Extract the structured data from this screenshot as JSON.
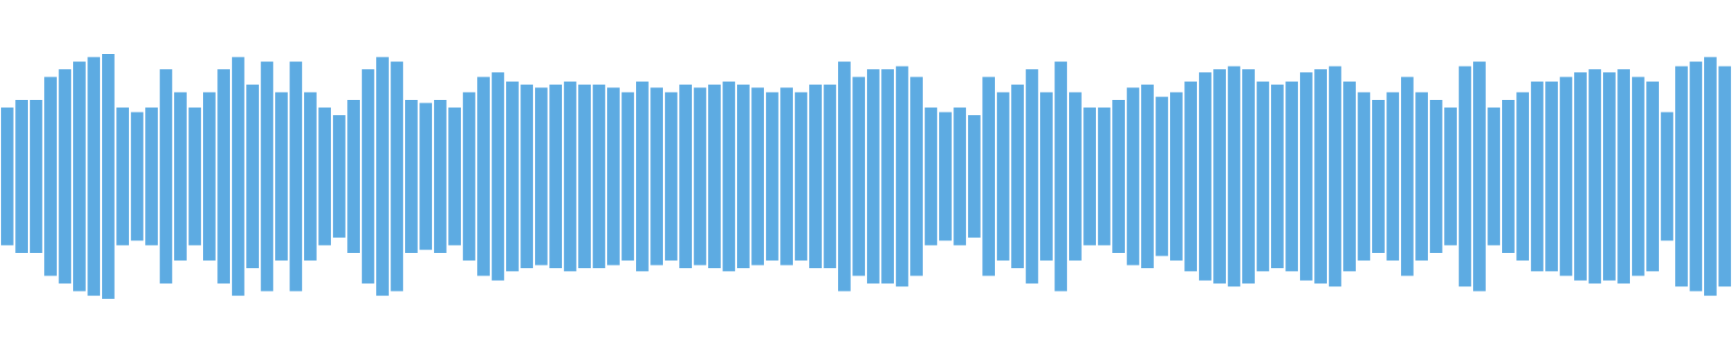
{
  "chart_data": {
    "type": "waveform",
    "color": "#5dabe2",
    "ylim": [
      -1,
      1
    ],
    "values": [
      0.45,
      0.5,
      0.5,
      0.65,
      0.7,
      0.75,
      0.78,
      0.8,
      0.45,
      0.42,
      0.45,
      0.7,
      0.55,
      0.45,
      0.55,
      0.7,
      0.78,
      0.6,
      0.75,
      0.55,
      0.75,
      0.55,
      0.45,
      0.4,
      0.5,
      0.7,
      0.78,
      0.75,
      0.5,
      0.48,
      0.5,
      0.45,
      0.55,
      0.65,
      0.68,
      0.62,
      0.6,
      0.58,
      0.6,
      0.62,
      0.6,
      0.6,
      0.58,
      0.55,
      0.62,
      0.58,
      0.55,
      0.6,
      0.58,
      0.6,
      0.62,
      0.6,
      0.58,
      0.55,
      0.58,
      0.55,
      0.6,
      0.6,
      0.75,
      0.65,
      0.7,
      0.7,
      0.72,
      0.65,
      0.45,
      0.42,
      0.45,
      0.4,
      0.65,
      0.55,
      0.6,
      0.7,
      0.55,
      0.75,
      0.55,
      0.45,
      0.45,
      0.5,
      0.58,
      0.6,
      0.52,
      0.55,
      0.62,
      0.68,
      0.7,
      0.72,
      0.7,
      0.62,
      0.6,
      0.62,
      0.68,
      0.7,
      0.72,
      0.62,
      0.55,
      0.5,
      0.55,
      0.65,
      0.55,
      0.5,
      0.45,
      0.72,
      0.75,
      0.45,
      0.5,
      0.55,
      0.62,
      0.62,
      0.65,
      0.68,
      0.7,
      0.68,
      0.7,
      0.65,
      0.62,
      0.42,
      0.72,
      0.75,
      0.78,
      0.72
    ]
  }
}
